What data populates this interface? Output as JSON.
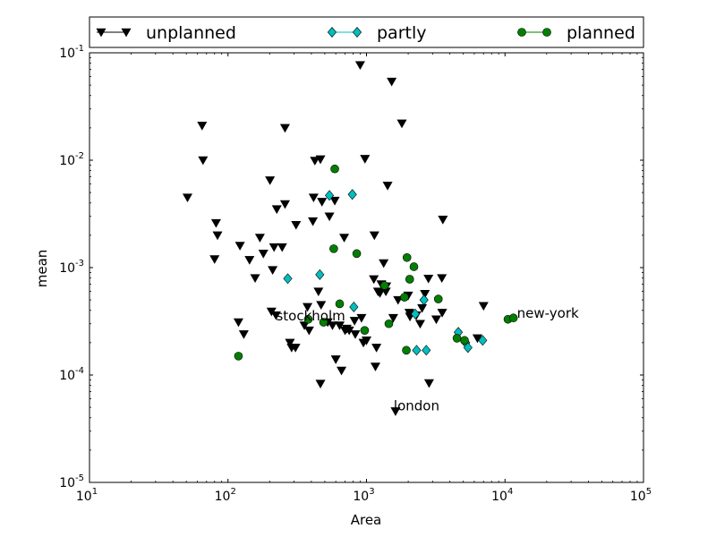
{
  "chart_data": {
    "type": "scatter",
    "xlabel": "Area",
    "ylabel": "mean",
    "xscale": "log",
    "yscale": "log",
    "xlim": [
      10,
      100000
    ],
    "ylim": [
      1e-05,
      0.1
    ],
    "x_ticks": [
      {
        "value": 10,
        "base": "10",
        "exp": "1"
      },
      {
        "value": 100,
        "base": "10",
        "exp": "2"
      },
      {
        "value": 1000,
        "base": "10",
        "exp": "3"
      },
      {
        "value": 10000,
        "base": "10",
        "exp": "4"
      },
      {
        "value": 100000,
        "base": "10",
        "exp": "5"
      }
    ],
    "y_ticks": [
      {
        "value": 1e-05,
        "base": "10",
        "exp": "-5"
      },
      {
        "value": 0.0001,
        "base": "10",
        "exp": "-4"
      },
      {
        "value": 0.001,
        "base": "10",
        "exp": "-3"
      },
      {
        "value": 0.01,
        "base": "10",
        "exp": "-2"
      },
      {
        "value": 0.1,
        "base": "10",
        "exp": "-1"
      }
    ],
    "grid": false,
    "legend_position": "top",
    "series": [
      {
        "name": "unplanned",
        "marker": "triangle-down",
        "color": "#000000",
        "points": [
          [
            51,
            0.0045
          ],
          [
            65,
            0.021
          ],
          [
            66,
            0.01
          ],
          [
            80,
            0.0012
          ],
          [
            82,
            0.0026
          ],
          [
            84,
            0.002
          ],
          [
            119,
            0.00031
          ],
          [
            122,
            0.0016
          ],
          [
            130,
            0.00024
          ],
          [
            143,
            0.00118
          ],
          [
            157,
            0.0008
          ],
          [
            170,
            0.0019
          ],
          [
            180,
            0.00135
          ],
          [
            201,
            0.0065
          ],
          [
            206,
            0.00039
          ],
          [
            210,
            0.00095
          ],
          [
            215,
            0.00155
          ],
          [
            222,
            0.00036
          ],
          [
            225,
            0.0035
          ],
          [
            246,
            0.00155
          ],
          [
            258,
            0.0039
          ],
          [
            258,
            0.02
          ],
          [
            280,
            0.0002
          ],
          [
            288,
            0.00018
          ],
          [
            307,
            0.00018
          ],
          [
            310,
            0.0025
          ],
          [
            356,
            0.00029
          ],
          [
            375,
            0.00043
          ],
          [
            385,
            0.00026
          ],
          [
            410,
            0.0027
          ],
          [
            415,
            0.0045
          ],
          [
            424,
            0.0099
          ],
          [
            450,
            0.0006
          ],
          [
            465,
            0.0102
          ],
          [
            470,
            0.00045
          ],
          [
            477,
            0.0041
          ],
          [
            465,
            8.3e-05
          ],
          [
            525,
            0.00031
          ],
          [
            540,
            0.003
          ],
          [
            568,
            0.00029
          ],
          [
            590,
            0.0042
          ],
          [
            600,
            0.00014
          ],
          [
            640,
            0.00029
          ],
          [
            660,
            0.00011
          ],
          [
            690,
            0.0019
          ],
          [
            700,
            0.00026
          ],
          [
            720,
            0.00027
          ],
          [
            750,
            0.00026
          ],
          [
            820,
            0.00032
          ],
          [
            830,
            0.00024
          ],
          [
            900,
            0.077
          ],
          [
            920,
            0.00034
          ],
          [
            950,
            0.0002
          ],
          [
            975,
            0.0103
          ],
          [
            1000,
            0.00021
          ],
          [
            1130,
            0.00078
          ],
          [
            1140,
            0.002
          ],
          [
            1160,
            0.00012
          ],
          [
            1180,
            0.00018
          ],
          [
            1210,
            0.0006
          ],
          [
            1250,
            0.00058
          ],
          [
            1280,
            0.0007
          ],
          [
            1330,
            0.0011
          ],
          [
            1380,
            0.0006
          ],
          [
            1390,
            0.00067
          ],
          [
            1420,
            0.0058
          ],
          [
            1520,
            0.054
          ],
          [
            1560,
            0.00034
          ],
          [
            1620,
            4.6e-05
          ],
          [
            1690,
            0.0005
          ],
          [
            1800,
            0.022
          ],
          [
            2000,
            0.00055
          ],
          [
            2040,
            0.00038
          ],
          [
            2060,
            0.00035
          ],
          [
            2290,
            0.00036
          ],
          [
            2440,
            0.0003
          ],
          [
            2520,
            0.00042
          ],
          [
            2640,
            0.00057
          ],
          [
            2800,
            0.00079
          ],
          [
            2830,
            8.4e-05
          ],
          [
            3190,
            0.00033
          ],
          [
            3500,
            0.0008
          ],
          [
            3520,
            0.00038
          ],
          [
            3560,
            0.0028
          ],
          [
            6320,
            0.00022
          ],
          [
            7000,
            0.00044
          ]
        ]
      },
      {
        "name": "partly",
        "marker": "diamond",
        "color": "#00bfbf",
        "points": [
          [
            270,
            0.00079
          ],
          [
            460,
            0.00086
          ],
          [
            540,
            0.0047
          ],
          [
            790,
            0.0048
          ],
          [
            810,
            0.00043
          ],
          [
            2250,
            0.00037
          ],
          [
            2300,
            0.00017
          ],
          [
            2600,
            0.0005
          ],
          [
            2700,
            0.00017
          ],
          [
            4600,
            0.00025
          ],
          [
            5200,
            0.0002
          ],
          [
            5400,
            0.00018
          ],
          [
            6900,
            0.00021
          ]
        ]
      },
      {
        "name": "planned",
        "marker": "circle",
        "color": "#007f00",
        "points": [
          [
            119,
            0.00015
          ],
          [
            380,
            0.00033
          ],
          [
            490,
            0.00031
          ],
          [
            580,
            0.0015
          ],
          [
            590,
            0.0083
          ],
          [
            640,
            0.00046
          ],
          [
            850,
            0.00135
          ],
          [
            970,
            0.00026
          ],
          [
            1350,
            0.00068
          ],
          [
            1450,
            0.0003
          ],
          [
            1880,
            0.00053
          ],
          [
            1940,
            0.00017
          ],
          [
            1960,
            0.00124
          ],
          [
            2050,
            0.00078
          ],
          [
            2200,
            0.00102
          ],
          [
            3300,
            0.00051
          ],
          [
            4500,
            0.00022
          ],
          [
            5100,
            0.00021
          ],
          [
            10500,
            0.00033
          ],
          [
            11500,
            0.00034
          ]
        ]
      }
    ],
    "annotations": [
      {
        "text": "stockholm",
        "x": 380,
        "y": 0.00033
      },
      {
        "text": "london",
        "x": 1620,
        "y": 4.6e-05
      },
      {
        "text": "new-york",
        "x": 11500,
        "y": 0.00034
      }
    ]
  }
}
